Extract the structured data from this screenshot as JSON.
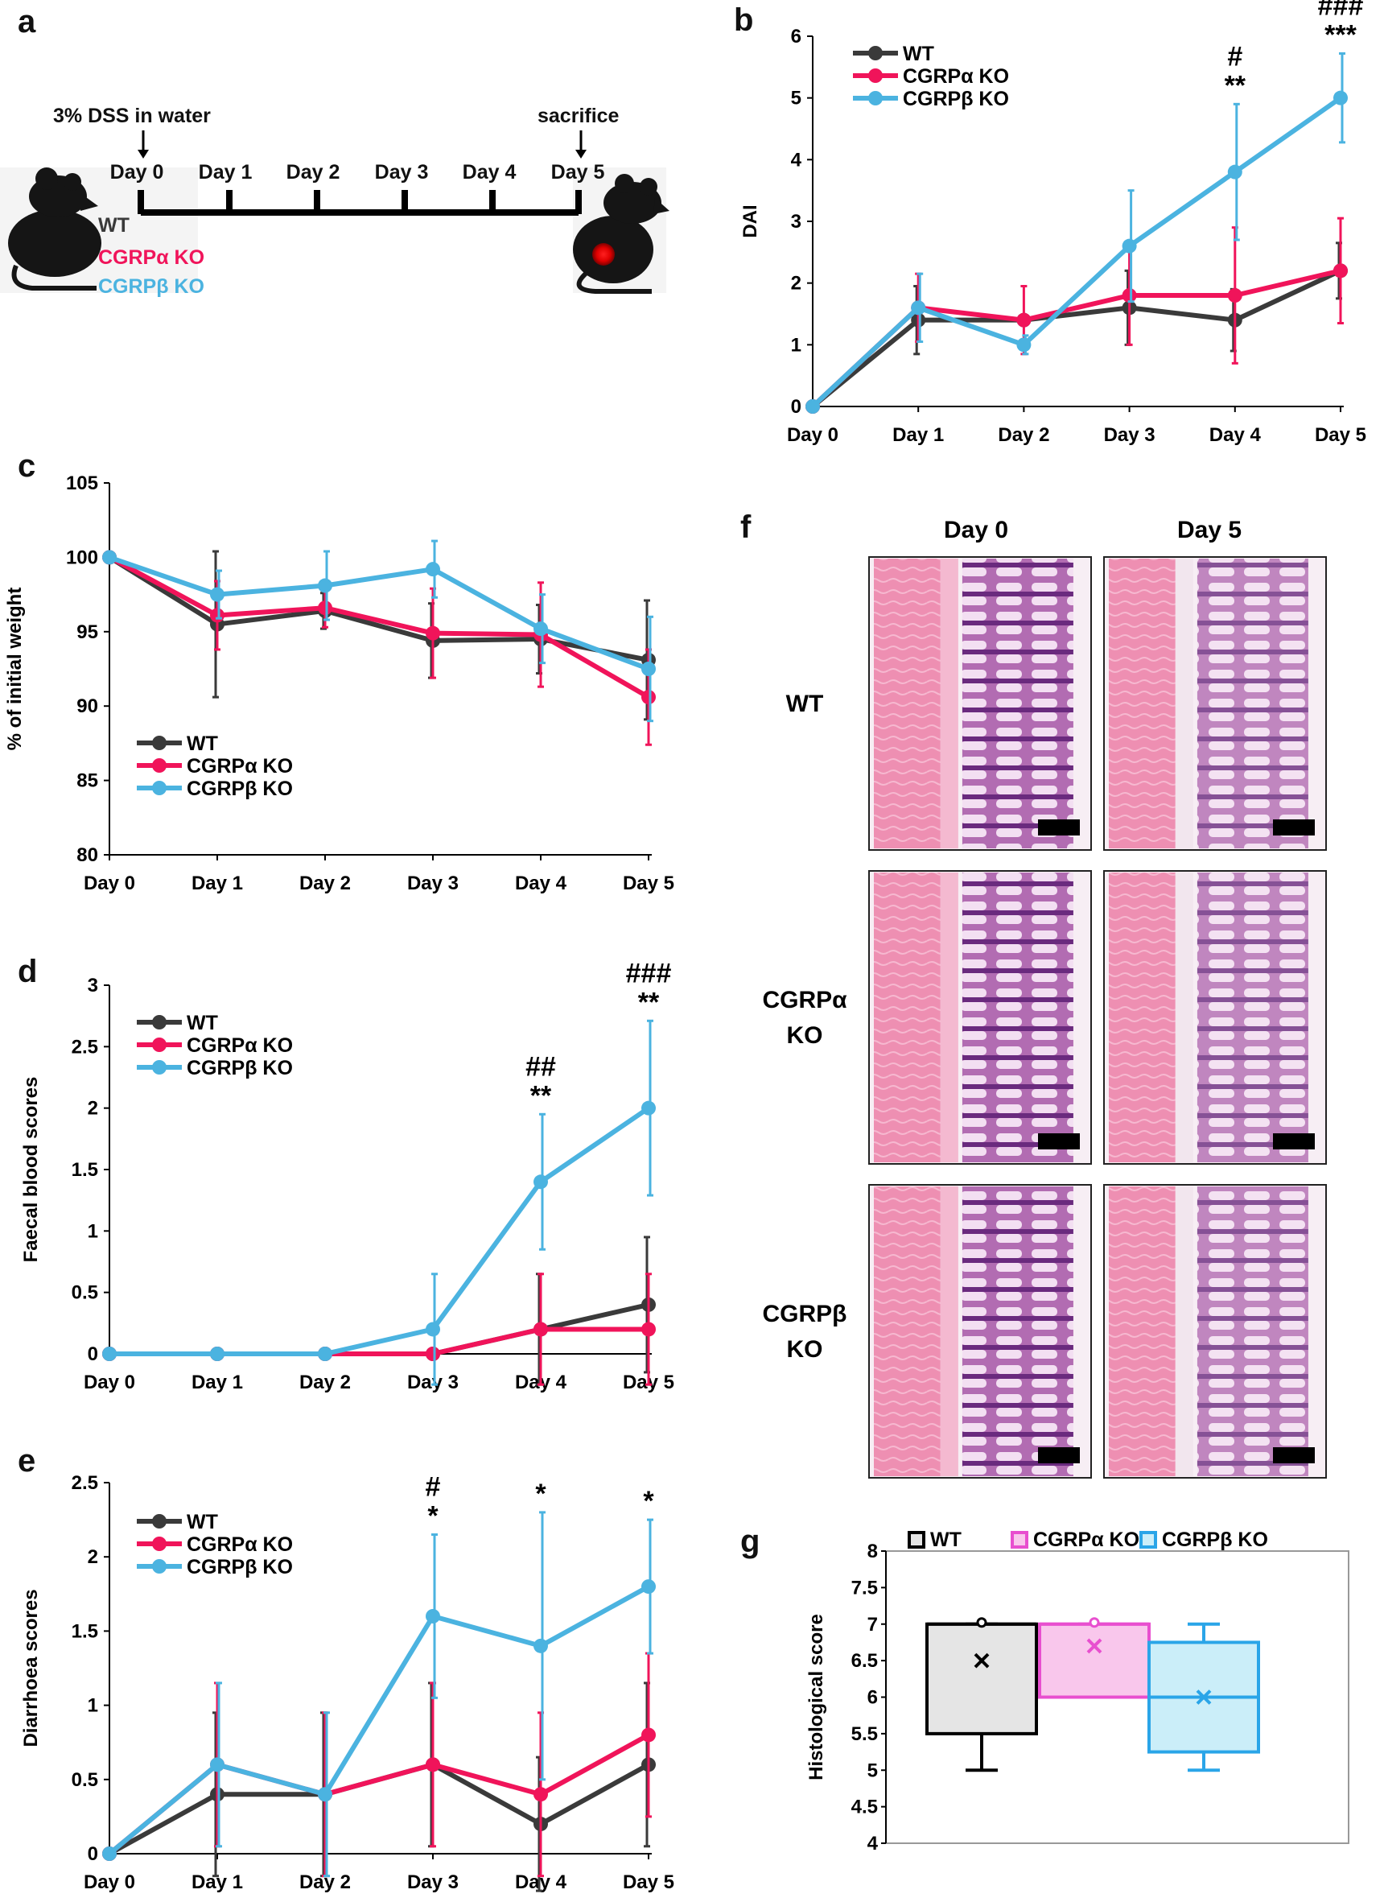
{
  "colors": {
    "wt": "#3a3a3a",
    "alpha": "#f0145a",
    "beta": "#4bb3e0",
    "alpha_light": "#f9c7ec",
    "alpha_box": "#e84fcf",
    "beta_light": "#cbeef9",
    "beta_box": "#2aa5e8",
    "wt_light": "#e5e5e5",
    "tissue": "#e98fb3",
    "crypt": "#8a3f9a"
  },
  "legend": {
    "wt": "WT",
    "alpha": "CGRPα KO",
    "beta": "CGRPβ KO"
  },
  "schematic": {
    "panel_label": "a",
    "treatment": "3% DSS in water",
    "end": "sacrifice",
    "days": [
      "Day 0",
      "Day 1",
      "Day 2",
      "Day 3",
      "Day 4",
      "Day 5"
    ],
    "groups": [
      "WT",
      "CGRPα KO",
      "CGRPβ KO"
    ]
  },
  "chart_data": [
    {
      "panel": "b",
      "type": "line",
      "ylabel": "DAI",
      "ylim": [
        0,
        6
      ],
      "yticks": [
        "0",
        "1",
        "2",
        "3",
        "4",
        "5",
        "6"
      ],
      "categories": [
        "Day 0",
        "Day 1",
        "Day 2",
        "Day 3",
        "Day 4",
        "Day 5"
      ],
      "series": [
        {
          "name": "WT",
          "key": "wt",
          "values": [
            0,
            1.4,
            1.4,
            1.6,
            1.4,
            2.2
          ],
          "errors": [
            0,
            0.55,
            0,
            0.6,
            0.5,
            0.45
          ]
        },
        {
          "name": "CGRPα KO",
          "key": "alpha",
          "values": [
            0,
            1.6,
            1.4,
            1.8,
            1.8,
            2.2
          ],
          "errors": [
            0,
            0.55,
            0.55,
            0.8,
            1.1,
            0.85
          ]
        },
        {
          "name": "CGRPβ KO",
          "key": "beta",
          "values": [
            0,
            1.6,
            1.0,
            2.6,
            3.8,
            5.0
          ],
          "errors": [
            0,
            0.55,
            0.15,
            0.9,
            1.1,
            0.72
          ]
        }
      ],
      "annotations": [
        {
          "day": 4,
          "y": 3.8,
          "err": 1.1,
          "lines": [
            "#",
            "**"
          ]
        },
        {
          "day": 5,
          "y": 5.0,
          "err": 0.72,
          "lines": [
            "###",
            "***"
          ]
        }
      ]
    },
    {
      "panel": "c",
      "type": "line",
      "ylabel": "% of initial weight",
      "ylim": [
        80,
        105
      ],
      "yticks": [
        "80",
        "85",
        "90",
        "95",
        "100",
        "105"
      ],
      "categories": [
        "Day 0",
        "Day 1",
        "Day 2",
        "Day 3",
        "Day 4",
        "Day 5"
      ],
      "series": [
        {
          "name": "WT",
          "key": "wt",
          "values": [
            100,
            95.5,
            96.4,
            94.4,
            94.5,
            93.1
          ],
          "errors": [
            0,
            4.9,
            1.2,
            2.5,
            2.3,
            4.0
          ]
        },
        {
          "name": "CGRPα KO",
          "key": "alpha",
          "values": [
            100,
            96.1,
            96.6,
            94.9,
            94.8,
            90.6
          ],
          "errors": [
            0,
            2.3,
            1.3,
            3.0,
            3.5,
            3.2
          ]
        },
        {
          "name": "CGRPβ KO",
          "key": "beta",
          "values": [
            100,
            97.5,
            98.1,
            99.2,
            95.2,
            92.5
          ],
          "errors": [
            0,
            1.6,
            2.3,
            1.9,
            2.3,
            3.5
          ]
        }
      ],
      "annotations": []
    },
    {
      "panel": "d",
      "type": "line",
      "ylabel": "Faecal blood scores",
      "ylim": [
        0,
        3
      ],
      "yticks": [
        "0",
        "0.5",
        "1",
        "1.5",
        "2",
        "2.5",
        "3"
      ],
      "categories": [
        "Day 0",
        "Day 1",
        "Day 2",
        "Day 3",
        "Day 4",
        "Day 5"
      ],
      "series": [
        {
          "name": "WT",
          "key": "wt",
          "values": [
            0,
            0,
            0,
            0,
            0.2,
            0.4
          ],
          "errors": [
            0,
            0,
            0,
            0,
            0.45,
            0.55
          ]
        },
        {
          "name": "CGRPα KO",
          "key": "alpha",
          "values": [
            0,
            0,
            0,
            0,
            0.2,
            0.2
          ],
          "errors": [
            0,
            0,
            0,
            0,
            0.45,
            0.45
          ]
        },
        {
          "name": "CGRPβ KO",
          "key": "beta",
          "values": [
            0,
            0,
            0,
            0.2,
            1.4,
            2.0
          ],
          "errors": [
            0,
            0,
            0,
            0.45,
            0.55,
            0.71
          ]
        }
      ],
      "annotations": [
        {
          "day": 4,
          "y": 1.4,
          "err": 0.55,
          "lines": [
            "##",
            "**"
          ]
        },
        {
          "day": 5,
          "y": 2.0,
          "err": 0.71,
          "lines": [
            "###",
            "**"
          ]
        }
      ]
    },
    {
      "panel": "e",
      "type": "line",
      "ylabel": "Diarrhoea scores",
      "ylim": [
        0,
        2.5
      ],
      "yticks": [
        "0",
        "0.5",
        "1",
        "1.5",
        "2",
        "2.5"
      ],
      "categories": [
        "Day 0",
        "Day 1",
        "Day 2",
        "Day 3",
        "Day 4",
        "Day 5"
      ],
      "series": [
        {
          "name": "WT",
          "key": "wt",
          "values": [
            0,
            0.4,
            0.4,
            0.6,
            0.2,
            0.6
          ],
          "errors": [
            0,
            0.55,
            0.55,
            0.55,
            0.45,
            0.55
          ]
        },
        {
          "name": "CGRPα KO",
          "key": "alpha",
          "values": [
            0,
            0.6,
            0.4,
            0.6,
            0.4,
            0.8
          ],
          "errors": [
            0,
            0.55,
            0.55,
            0.55,
            0.55,
            0.55
          ]
        },
        {
          "name": "CGRPβ KO",
          "key": "beta",
          "values": [
            0,
            0.6,
            0.4,
            1.6,
            1.4,
            1.8
          ],
          "errors": [
            0,
            0.55,
            0.55,
            0.55,
            0.9,
            0.45
          ]
        }
      ],
      "annotations": [
        {
          "day": 3,
          "y": 1.6,
          "err": 0.55,
          "lines": [
            "#",
            "*"
          ]
        },
        {
          "day": 4,
          "y": 1.4,
          "err": 0.9,
          "lines": [
            "*"
          ]
        },
        {
          "day": 5,
          "y": 1.8,
          "err": 0.45,
          "lines": [
            "*"
          ]
        }
      ]
    },
    {
      "panel": "g",
      "type": "box",
      "ylabel": "Histological score",
      "ylim": [
        4,
        8
      ],
      "yticks": [
        "4",
        "4.5",
        "5",
        "5.5",
        "6",
        "6.5",
        "7",
        "7.5",
        "8"
      ],
      "groups": [
        {
          "name": "WT",
          "key": "wt",
          "min": 5,
          "q1": 5.5,
          "median": 7,
          "q3": 7,
          "max": 7,
          "mean": 6.5
        },
        {
          "name": "CGRPα KO",
          "key": "alpha",
          "min": 6,
          "q1": 6,
          "median": 7,
          "q3": 7,
          "max": 7,
          "mean": 6.7
        },
        {
          "name": "CGRPβ KO",
          "key": "beta",
          "min": 5,
          "q1": 5.25,
          "median": 6,
          "q3": 6.75,
          "max": 7,
          "mean": 6.0
        }
      ]
    }
  ],
  "histology": {
    "panel_label": "f",
    "columns": [
      "Day 0",
      "Day 5"
    ],
    "rows": [
      "WT",
      "CGRPα\nKO",
      "CGRPβ\nKO"
    ]
  }
}
